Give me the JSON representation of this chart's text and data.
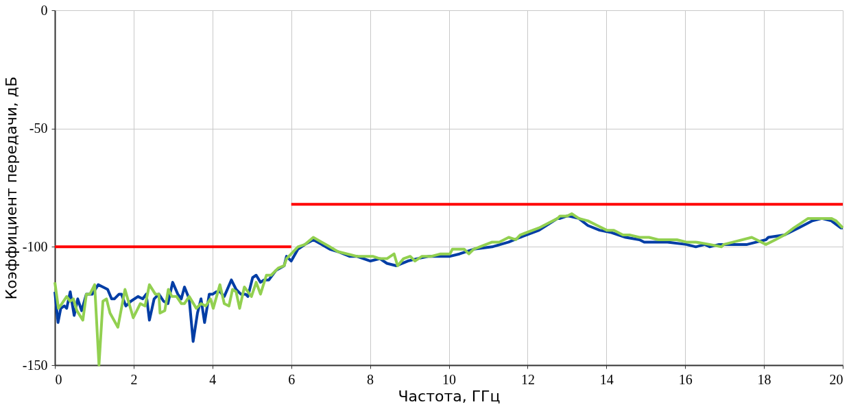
{
  "chart_data": {
    "type": "line",
    "xlabel": "Частота, ГГц",
    "ylabel": "Коэффициент передачи, дБ",
    "xlim": [
      0,
      20
    ],
    "xticks": [
      0,
      2,
      4,
      6,
      8,
      10,
      12,
      14,
      16,
      18,
      20
    ],
    "ylim": [
      -150,
      0
    ],
    "yticks": [
      -150,
      -100,
      -50,
      0
    ],
    "grid": true,
    "marker": "none",
    "line_style": "solid",
    "series": [
      {
        "color": "#003da5",
        "x": [
          0.0,
          0.08,
          0.15,
          0.24,
          0.3,
          0.39,
          0.49,
          0.58,
          0.68,
          0.8,
          0.95,
          1.1,
          1.22,
          1.34,
          1.44,
          1.51,
          1.63,
          1.69,
          1.8,
          1.93,
          2.11,
          2.23,
          2.32,
          2.4,
          2.52,
          2.64,
          2.76,
          2.87,
          2.99,
          3.12,
          3.21,
          3.29,
          3.41,
          3.51,
          3.62,
          3.71,
          3.8,
          3.92,
          4.01,
          4.1,
          4.19,
          4.3,
          4.48,
          4.6,
          4.72,
          4.84,
          4.9,
          5.02,
          5.11,
          5.22,
          5.31,
          5.43,
          5.61,
          5.82,
          5.88,
          6.0,
          6.17,
          6.35,
          6.56,
          6.77,
          6.98,
          7.18,
          7.48,
          7.66,
          8.01,
          8.25,
          8.43,
          8.67,
          8.96,
          9.2,
          9.5,
          9.74,
          10.03,
          10.27,
          10.63,
          11.1,
          11.52,
          11.81,
          12.29,
          12.76,
          12.82,
          13.0,
          13.06,
          13.3,
          13.53,
          13.83,
          14.13,
          14.49,
          14.84,
          14.96,
          15.2,
          15.55,
          16.03,
          16.27,
          16.5,
          16.62,
          16.86,
          17.34,
          17.57,
          17.81,
          18.05,
          18.11,
          18.52,
          18.88,
          19.23,
          19.47,
          19.71,
          19.95,
          20.0
        ],
        "values": [
          -119,
          -132,
          -126,
          -125,
          -126,
          -119,
          -129,
          -122,
          -127,
          -120,
          -120,
          -116,
          -117,
          -118,
          -122,
          -122,
          -120,
          -120,
          -125,
          -123,
          -121,
          -122,
          -120,
          -131,
          -122,
          -120,
          -123,
          -124,
          -115,
          -120,
          -122,
          -117,
          -122,
          -140,
          -128,
          -122,
          -132,
          -120,
          -120,
          -119,
          -119,
          -121,
          -114,
          -118,
          -120,
          -120,
          -121,
          -113,
          -112,
          -115,
          -114,
          -114,
          -110,
          -108,
          -104,
          -106,
          -101,
          -99,
          -97,
          -99,
          -101,
          -102,
          -104,
          -104,
          -106,
          -105,
          -107,
          -108,
          -106,
          -105,
          -104,
          -104,
          -104,
          -103,
          -101,
          -100,
          -98,
          -96,
          -93,
          -88,
          -88,
          -87,
          -87,
          -88,
          -91,
          -93,
          -94,
          -96,
          -97,
          -98,
          -98,
          -98,
          -99,
          -100,
          -99,
          -100,
          -99,
          -99,
          -99,
          -98,
          -97,
          -96,
          -95,
          -92,
          -89,
          -88,
          -89,
          -92,
          -92
        ]
      },
      {
        "color": "#92d050",
        "x": [
          0.0,
          0.09,
          0.18,
          0.3,
          0.39,
          0.47,
          0.56,
          0.71,
          0.8,
          0.89,
          1.01,
          1.12,
          1.22,
          1.31,
          1.4,
          1.6,
          1.78,
          1.99,
          2.17,
          2.29,
          2.4,
          2.55,
          2.64,
          2.67,
          2.79,
          2.88,
          2.97,
          3.09,
          3.21,
          3.29,
          3.41,
          3.59,
          3.71,
          3.83,
          3.95,
          4.02,
          4.19,
          4.3,
          4.42,
          4.51,
          4.6,
          4.69,
          4.81,
          4.99,
          5.11,
          5.22,
          5.37,
          5.49,
          5.67,
          5.82,
          5.88,
          6.0,
          6.17,
          6.35,
          6.56,
          6.77,
          6.98,
          7.18,
          7.42,
          7.66,
          7.9,
          8.07,
          8.25,
          8.43,
          8.61,
          8.7,
          8.85,
          9.02,
          9.14,
          9.32,
          9.56,
          9.79,
          10.03,
          10.09,
          10.39,
          10.51,
          10.63,
          11.1,
          11.28,
          11.52,
          11.7,
          11.81,
          12.29,
          12.76,
          12.82,
          13.0,
          13.12,
          13.3,
          13.53,
          13.77,
          14.01,
          14.19,
          14.42,
          14.6,
          14.84,
          15.08,
          15.32,
          15.62,
          15.79,
          16.03,
          16.27,
          16.62,
          16.92,
          16.98,
          17.22,
          17.69,
          18.05,
          18.29,
          18.52,
          18.76,
          19.12,
          19.35,
          19.71,
          19.83,
          20.0
        ],
        "values": [
          -115,
          -126,
          -124,
          -121,
          -123,
          -122,
          -127,
          -131,
          -120,
          -120,
          -116,
          -150,
          -123,
          -122,
          -128,
          -134,
          -118,
          -130,
          -124,
          -125,
          -116,
          -120,
          -120,
          -128,
          -127,
          -118,
          -121,
          -121,
          -124,
          -124,
          -121,
          -126,
          -124,
          -125,
          -122,
          -126,
          -116,
          -124,
          -125,
          -118,
          -119,
          -126,
          -117,
          -121,
          -115,
          -120,
          -112,
          -112,
          -109,
          -108,
          -105,
          -103,
          -100,
          -99,
          -96,
          -98,
          -100,
          -102,
          -103,
          -104,
          -104,
          -104,
          -105,
          -105,
          -103,
          -108,
          -105,
          -104,
          -106,
          -104,
          -104,
          -103,
          -103,
          -101,
          -101,
          -103,
          -101,
          -98,
          -98,
          -96,
          -97,
          -95,
          -92,
          -88,
          -87,
          -87,
          -86,
          -88,
          -89,
          -91,
          -93,
          -93,
          -95,
          -95,
          -96,
          -96,
          -97,
          -97,
          -97,
          -98,
          -98,
          -99,
          -100,
          -99,
          -98,
          -96,
          -99,
          -97,
          -95,
          -92,
          -88,
          -88,
          -88,
          -89,
          -92
        ]
      },
      {
        "color": "#ff0000",
        "x": [
          0,
          6
        ],
        "values": [
          -100,
          -100
        ]
      },
      {
        "color": "#ff0000",
        "x": [
          6,
          20
        ],
        "values": [
          -82,
          -82
        ]
      }
    ]
  }
}
